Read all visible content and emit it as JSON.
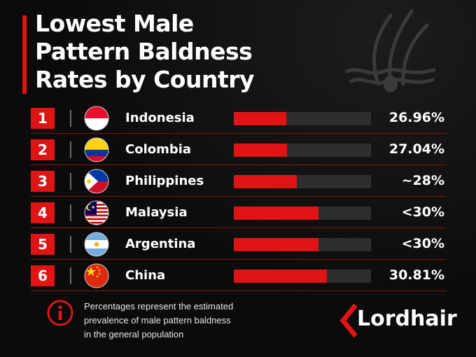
{
  "title_lines": [
    "Lowest Male",
    "Pattern Baldness",
    "Rates by Country"
  ],
  "chart_data": {
    "type": "bar",
    "categories": [
      "Indonesia",
      "Colombia",
      "Philippines",
      "Malaysia",
      "Argentina",
      "China"
    ],
    "values": [
      26.96,
      27.04,
      28,
      30,
      30,
      30.81
    ],
    "value_labels": [
      "26.96%",
      "27.04%",
      "~28%",
      "<30%",
      "<30%",
      "30.81%"
    ],
    "ranks": [
      "1",
      "2",
      "3",
      "4",
      "5",
      "6"
    ],
    "flags": [
      "indonesia-flag-icon",
      "colombia-flag-icon",
      "philippines-flag-icon",
      "malaysia-flag-icon",
      "argentina-flag-icon",
      "china-flag-icon"
    ],
    "bar_color": "#e01414",
    "track_color": "#2e2e2e"
  },
  "footnote_lines": [
    "Percentages represent the estimated",
    "prevalence of male pattern baldness",
    "in the general population"
  ],
  "logo": {
    "text": "Lordhair"
  },
  "colors": {
    "accent": "#e01414",
    "background": "#0b0b0b"
  }
}
